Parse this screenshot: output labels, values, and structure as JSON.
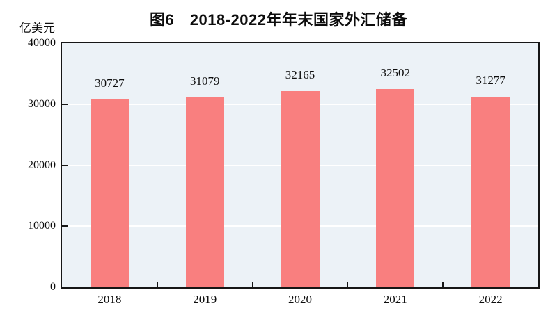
{
  "chart_data": {
    "type": "bar",
    "title": "图6　2018-2022年年末国家外汇储备",
    "ylabel": "亿美元",
    "xlabel": "",
    "categories": [
      "2018",
      "2019",
      "2020",
      "2021",
      "2022"
    ],
    "values": [
      30727,
      31079,
      32165,
      32502,
      31277
    ],
    "data_labels": [
      "30727",
      "31079",
      "32165",
      "32502",
      "31277"
    ],
    "ylim": [
      0,
      40000
    ],
    "y_ticks": [
      0,
      10000,
      20000,
      30000,
      40000
    ],
    "grid": "horizontal-major-white",
    "legend": "none",
    "colors": {
      "bar_fill": "#f97f7f",
      "plot_background": "#ecf2f7",
      "gridline": "#ffffff",
      "axis": "#161616",
      "text": "#0d0d0d",
      "page_background": "#ffffff"
    }
  }
}
